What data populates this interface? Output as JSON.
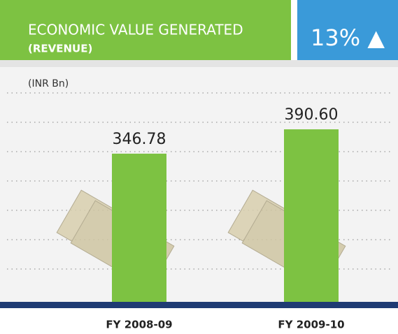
{
  "chart_data": {
    "type": "bar",
    "title": "ECONOMIC VALUE GENERATED",
    "subtitle": "(REVENUE)",
    "badge": "13% ▲",
    "unit_label": "(INR Bn)",
    "categories": [
      "FY 2008-09",
      "FY 2009-10"
    ],
    "values": [
      346.78,
      390.6
    ],
    "value_labels": [
      "346.78",
      "390.60"
    ],
    "color": "#7dc242",
    "ylim": [
      80,
      480
    ]
  }
}
